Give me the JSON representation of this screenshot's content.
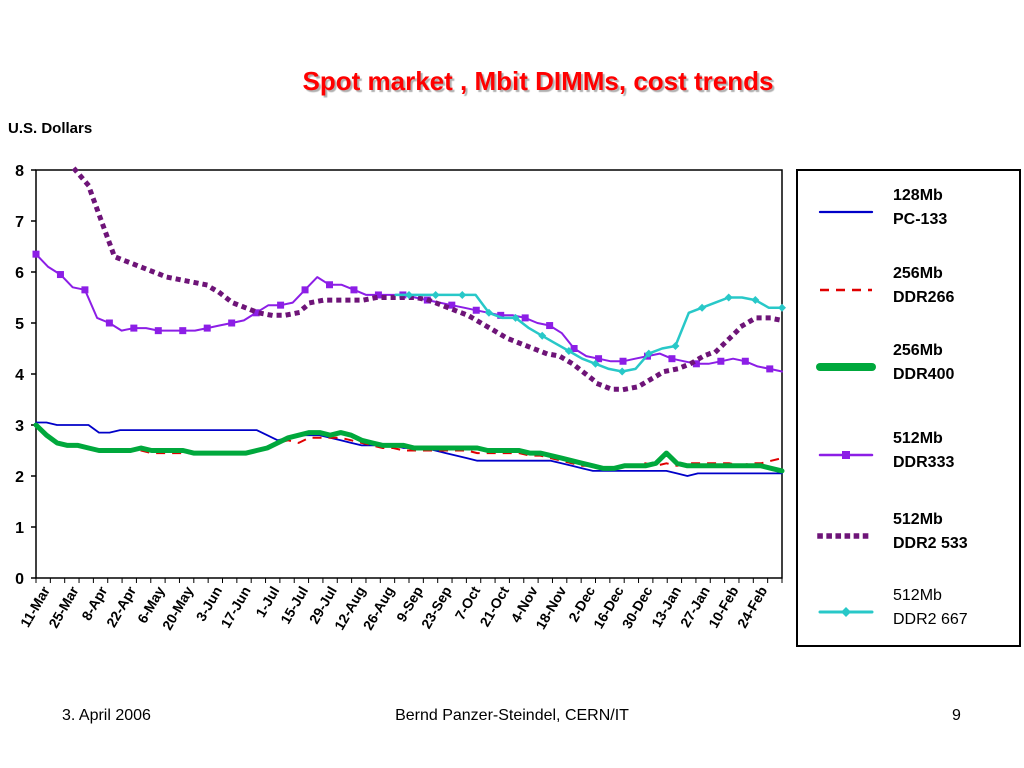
{
  "slide": {
    "title": "Spot market , Mbit DIMMs, cost trends",
    "footer_date": "3. April 2006",
    "footer_author": "Bernd Panzer-Steindel, CERN/IT",
    "page_number": "9"
  },
  "chart_data": {
    "type": "line",
    "ylabel": "U.S. Dollars",
    "ylim": [
      0,
      8
    ],
    "yticks": [
      0,
      1,
      2,
      3,
      4,
      5,
      6,
      7,
      8
    ],
    "xticklabels": [
      "11-Mar",
      "25-Mar",
      "8-Apr",
      "22-Apr",
      "6-May",
      "20-May",
      "3-Jun",
      "17-Jun",
      "1-Jul",
      "15-Jul",
      "29-Jul",
      "12-Aug",
      "26-Aug",
      "9-Sep",
      "23-Sep",
      "7-Oct",
      "21-Oct",
      "4-Nov",
      "18-Nov",
      "2-Dec",
      "16-Dec",
      "30-Dec",
      "13-Jan",
      "27-Jan",
      "10-Feb",
      "24-Feb"
    ],
    "grid": false,
    "legend_position": "right",
    "series": [
      {
        "name": "128Mb PC-133",
        "label_line1": "128Mb",
        "label_line2": "PC-133",
        "color": "#0000c8",
        "style": "solid",
        "values": [
          3.05,
          3.05,
          3.0,
          3.0,
          3.0,
          3.0,
          2.85,
          2.85,
          2.9,
          2.9,
          2.9,
          2.9,
          2.9,
          2.9,
          2.9,
          2.9,
          2.9,
          2.9,
          2.9,
          2.9,
          2.9,
          2.9,
          2.8,
          2.7,
          2.75,
          2.8,
          2.8,
          2.8,
          2.75,
          2.7,
          2.65,
          2.6,
          2.6,
          2.6,
          2.6,
          2.55,
          2.55,
          2.55,
          2.5,
          2.45,
          2.4,
          2.35,
          2.3,
          2.3,
          2.3,
          2.3,
          2.3,
          2.3,
          2.3,
          2.3,
          2.25,
          2.2,
          2.15,
          2.1,
          2.1,
          2.1,
          2.1,
          2.1,
          2.1,
          2.1,
          2.1,
          2.05,
          2.0,
          2.05,
          2.05,
          2.05,
          2.05,
          2.05,
          2.05,
          2.05,
          2.05,
          2.05
        ]
      },
      {
        "name": "256Mb DDR266",
        "label_line1": "256Mb",
        "label_line2": "DDR266",
        "color": "#e00000",
        "style": "dashed",
        "values": [
          3.0,
          2.8,
          2.65,
          2.6,
          2.6,
          2.55,
          2.5,
          2.5,
          2.5,
          2.5,
          2.5,
          2.45,
          2.45,
          2.45,
          2.45,
          2.45,
          2.45,
          2.45,
          2.45,
          2.45,
          2.45,
          2.5,
          2.55,
          2.65,
          2.7,
          2.65,
          2.75,
          2.75,
          2.75,
          2.75,
          2.7,
          2.65,
          2.6,
          2.55,
          2.55,
          2.5,
          2.5,
          2.5,
          2.5,
          2.5,
          2.5,
          2.5,
          2.45,
          2.45,
          2.45,
          2.45,
          2.45,
          2.4,
          2.4,
          2.35,
          2.3,
          2.25,
          2.2,
          2.2,
          2.15,
          2.15,
          2.2,
          2.2,
          2.25,
          2.2,
          2.25,
          2.2,
          2.25,
          2.25,
          2.25,
          2.25,
          2.25,
          2.2,
          2.25,
          2.25,
          2.3,
          2.35
        ]
      },
      {
        "name": "256Mb DDR400",
        "label_line1": "256Mb",
        "label_line2": "DDR400",
        "color": "#00a83c",
        "style": "thick",
        "values": [
          3.0,
          2.8,
          2.65,
          2.6,
          2.6,
          2.55,
          2.5,
          2.5,
          2.5,
          2.5,
          2.55,
          2.5,
          2.5,
          2.5,
          2.5,
          2.45,
          2.45,
          2.45,
          2.45,
          2.45,
          2.45,
          2.5,
          2.55,
          2.65,
          2.75,
          2.8,
          2.85,
          2.85,
          2.8,
          2.85,
          2.8,
          2.7,
          2.65,
          2.6,
          2.6,
          2.6,
          2.55,
          2.55,
          2.55,
          2.55,
          2.55,
          2.55,
          2.55,
          2.5,
          2.5,
          2.5,
          2.5,
          2.45,
          2.45,
          2.4,
          2.35,
          2.3,
          2.25,
          2.2,
          2.15,
          2.15,
          2.2,
          2.2,
          2.2,
          2.25,
          2.45,
          2.25,
          2.2,
          2.2,
          2.2,
          2.2,
          2.2,
          2.2,
          2.2,
          2.2,
          2.15,
          2.1
        ]
      },
      {
        "name": "512Mb DDR333",
        "label_line1": "512Mb",
        "label_line2": "DDR333",
        "color": "#8c1ee6",
        "style": "solid-marker",
        "values": [
          6.35,
          6.1,
          5.95,
          5.7,
          5.65,
          5.1,
          5.0,
          4.85,
          4.9,
          4.9,
          4.85,
          4.85,
          4.85,
          4.85,
          4.9,
          4.95,
          5.0,
          5.05,
          5.2,
          5.35,
          5.35,
          5.4,
          5.65,
          5.9,
          5.75,
          5.75,
          5.65,
          5.55,
          5.55,
          5.55,
          5.55,
          5.5,
          5.45,
          5.4,
          5.35,
          5.3,
          5.25,
          5.2,
          5.15,
          5.15,
          5.1,
          5.0,
          4.95,
          4.8,
          4.5,
          4.35,
          4.3,
          4.25,
          4.25,
          4.3,
          4.35,
          4.4,
          4.3,
          4.25,
          4.2,
          4.2,
          4.25,
          4.3,
          4.25,
          4.15,
          4.1,
          4.05
        ]
      },
      {
        "name": "512Mb DDR2 533",
        "label_line1": "512Mb",
        "label_line2": "DDR2 533",
        "color": "#6e1478",
        "style": "dotted",
        "values": [
          null,
          null,
          null,
          8.0,
          7.7,
          7.0,
          6.3,
          6.2,
          6.1,
          6.0,
          5.9,
          5.85,
          5.8,
          5.75,
          5.6,
          5.4,
          5.3,
          5.2,
          5.15,
          5.15,
          5.2,
          5.4,
          5.45,
          5.45,
          5.45,
          5.45,
          5.5,
          5.5,
          5.5,
          5.5,
          5.45,
          5.35,
          5.25,
          5.15,
          5.0,
          4.85,
          4.7,
          4.6,
          4.5,
          4.4,
          4.35,
          4.2,
          4.0,
          3.8,
          3.7,
          3.7,
          3.75,
          3.9,
          4.05,
          4.1,
          4.2,
          4.35,
          4.45,
          4.7,
          4.95,
          5.1,
          5.1,
          5.05
        ]
      },
      {
        "name": "512Mb DDR2 667",
        "label_line1": "512Mb",
        "label_line2": "DDR2 667",
        "color": "#28c8c8",
        "style": "solid-marker-thin",
        "values": [
          null,
          null,
          null,
          null,
          null,
          null,
          null,
          null,
          null,
          null,
          null,
          null,
          null,
          null,
          null,
          null,
          null,
          null,
          null,
          null,
          null,
          null,
          null,
          null,
          null,
          null,
          null,
          5.55,
          5.55,
          5.55,
          5.55,
          5.55,
          5.55,
          5.55,
          5.2,
          5.1,
          5.1,
          4.9,
          4.75,
          4.6,
          4.45,
          4.3,
          4.2,
          4.1,
          4.05,
          4.1,
          4.4,
          4.5,
          4.55,
          5.2,
          5.3,
          5.4,
          5.5,
          5.5,
          5.45,
          5.3,
          5.3
        ]
      }
    ]
  }
}
